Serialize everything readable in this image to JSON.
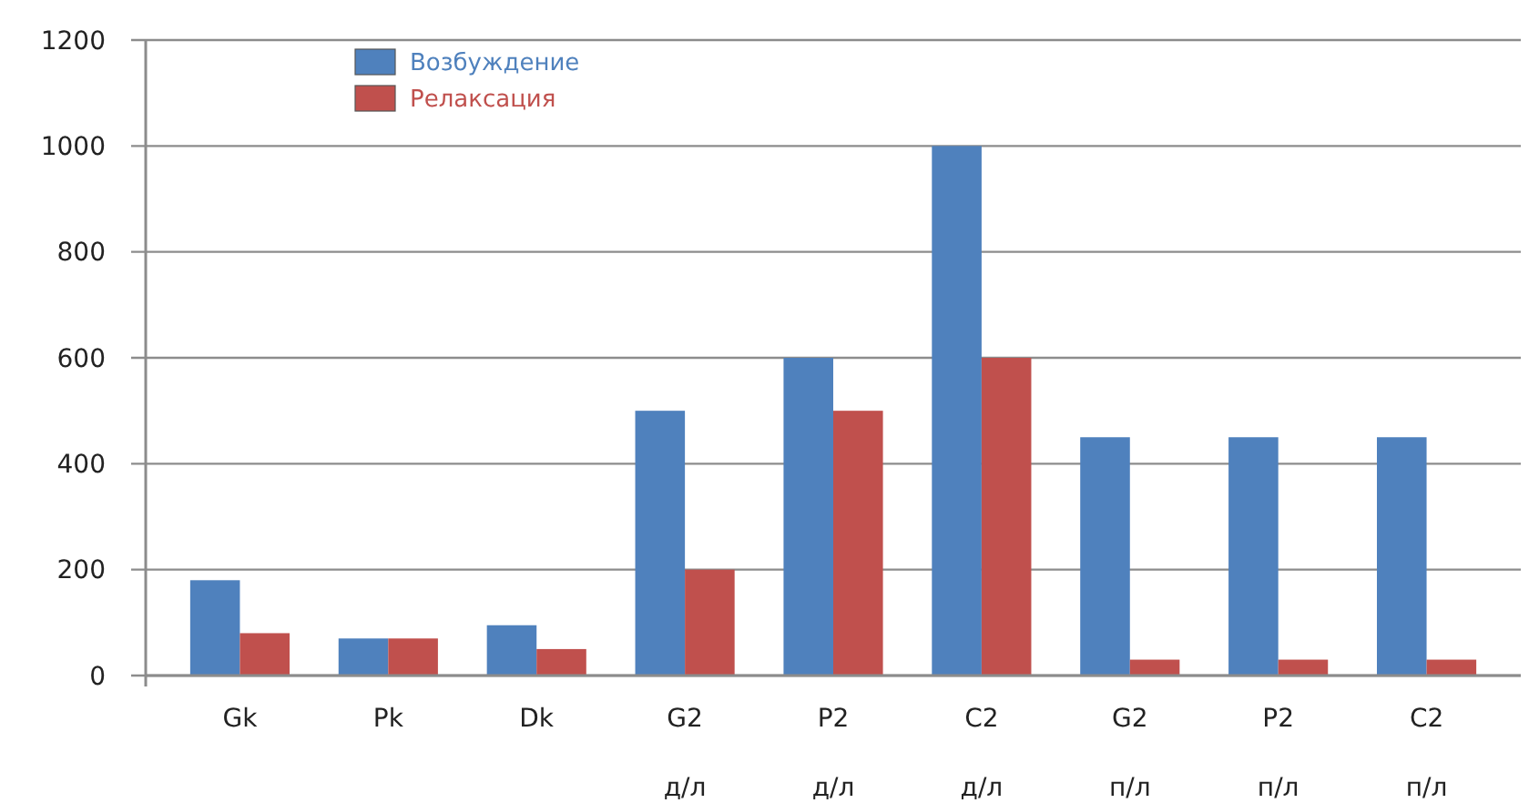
{
  "chart_data": {
    "type": "bar",
    "categories": [
      "Gk",
      "Pk",
      "Dk",
      "G2\nд/л",
      "P2\nд/л",
      "C2\nд/л",
      "G2\nп/л",
      "P2\nп/л",
      "C2\nп/л"
    ],
    "series": [
      {
        "name": "Возбуждение",
        "color": "#4f81bd",
        "values": [
          180,
          70,
          95,
          500,
          600,
          1000,
          450,
          450,
          450
        ]
      },
      {
        "name": "Релаксация",
        "color": "#c0504d",
        "values": [
          80,
          70,
          50,
          200,
          500,
          600,
          30,
          30,
          30
        ]
      }
    ],
    "ylim": [
      0,
      1200
    ],
    "yticks": [
      0,
      200,
      400,
      600,
      800,
      1000,
      1200
    ],
    "grid": "y",
    "legend": "top left"
  }
}
